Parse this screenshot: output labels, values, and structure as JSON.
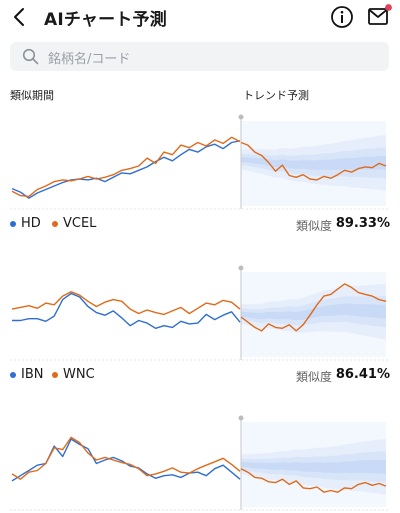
{
  "header": {
    "title": "AIチャート予測",
    "back_icon": "chevron-left-icon",
    "info_icon": "info-icon",
    "mail_icon": "mail-icon",
    "notification_color": "#e53e5a"
  },
  "search": {
    "placeholder": "銘柄名/コード"
  },
  "columns": {
    "left": "類似期間",
    "right": "トレンド予測"
  },
  "colors": {
    "blue": "#2f6fd1",
    "orange": "#e06a1b",
    "band_light": "#e6eefb",
    "band_dark": "#c9daf7",
    "grid": "#e6e6e6"
  },
  "cards": [
    {
      "legend": [
        {
          "name": "HD",
          "color": "#2f6fd1"
        },
        {
          "name": "VCEL",
          "color": "#e06a1b"
        }
      ],
      "similarity_label": "類似度",
      "similarity": "89.33%",
      "chart_data": {
        "type": "line",
        "x_count": 28,
        "series": [
          {
            "name": "HD",
            "values": [
              20,
              16,
              9,
              15,
              19,
              23,
              27,
              30,
              31,
              30,
              32,
              28,
              33,
              38,
              37,
              41,
              45,
              51,
              56,
              52,
              59,
              65,
              62,
              68,
              71,
              66,
              73,
              75
            ]
          },
          {
            "name": "VCEL",
            "values": [
              17,
              12,
              11,
              19,
              23,
              28,
              30,
              29,
              31,
              34,
              31,
              33,
              36,
              41,
              43,
              46,
              55,
              49,
              62,
              59,
              70,
              67,
              73,
              69,
              76,
              72,
              79,
              74
            ]
          }
        ],
        "forecast": [
          73,
          70,
          62,
          58,
          50,
          40,
          47,
          35,
          33,
          36,
          31,
          30,
          34,
          32,
          36,
          41,
          39,
          43,
          45,
          44,
          49,
          46
        ]
      }
    },
    {
      "legend": [
        {
          "name": "IBN",
          "color": "#2f6fd1"
        },
        {
          "name": "WNC",
          "color": "#e06a1b"
        }
      ],
      "similarity_label": "類似度",
      "similarity": "86.41%",
      "chart_data": {
        "type": "line",
        "x_count": 28,
        "series": [
          {
            "name": "IBN",
            "values": [
              42,
              42,
              44,
              44,
              41,
              47,
              66,
              73,
              69,
              58,
              51,
              48,
              53,
              45,
              36,
              42,
              39,
              33,
              36,
              34,
              41,
              38,
              39,
              49,
              43,
              48,
              52,
              40
            ]
          },
          {
            "name": "WNC",
            "values": [
              55,
              57,
              59,
              56,
              62,
              60,
              70,
              75,
              71,
              64,
              58,
              63,
              66,
              64,
              55,
              50,
              54,
              51,
              49,
              53,
              57,
              50,
              56,
              62,
              60,
              65,
              63,
              55
            ]
          }
        ],
        "forecast": [
          46,
          40,
          34,
          30,
          38,
          34,
          33,
          37,
          30,
          37,
          48,
          60,
          70,
          72,
          78,
          84,
          80,
          74,
          72,
          70,
          66,
          64
        ]
      }
    },
    {
      "legend": [],
      "similarity_label": "",
      "similarity": "",
      "chart_data": {
        "type": "line",
        "x_count": 28,
        "series": [
          {
            "name": "",
            "values": [
              30,
              36,
              42,
              48,
              50,
              70,
              58,
              78,
              72,
              67,
              50,
              54,
              57,
              53,
              47,
              45,
              38,
              33,
              36,
              37,
              34,
              39,
              40,
              36,
              44,
              48,
              40,
              32
            ]
          },
          {
            "name": "",
            "values": [
              38,
              32,
              40,
              42,
              50,
              68,
              66,
              80,
              74,
              62,
              54,
              57,
              54,
              51,
              49,
              44,
              36,
              38,
              41,
              45,
              40,
              39,
              44,
              48,
              52,
              56,
              49,
              41
            ]
          }
        ],
        "forecast": [
          44,
          40,
          34,
          33,
          29,
          28,
          32,
          26,
          30,
          22,
          21,
          23,
          17,
          19,
          17,
          22,
          21,
          26,
          28,
          25,
          27,
          24
        ]
      }
    }
  ]
}
